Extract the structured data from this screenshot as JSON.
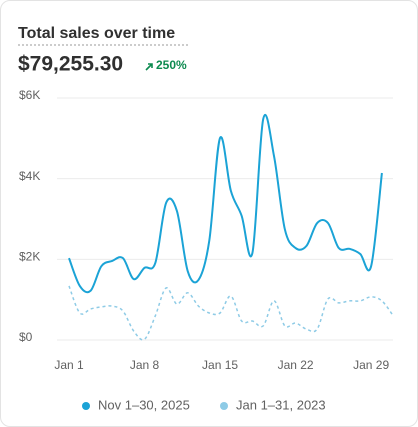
{
  "title": "Total sales over time",
  "total": "$79,255.30",
  "change": "250%",
  "chart_data": {
    "type": "line",
    "categories": [
      "Jan 1",
      null,
      null,
      null,
      null,
      null,
      null,
      "Jan 8",
      null,
      null,
      null,
      null,
      null,
      null,
      "Jan 15",
      null,
      null,
      null,
      null,
      null,
      null,
      "Jan 22",
      null,
      null,
      null,
      null,
      null,
      null,
      "Jan 29",
      null,
      null
    ],
    "series": [
      {
        "name": "Nov 1–30, 2025",
        "color": "#1ba3d6",
        "dashed": false,
        "values": [
          2030,
          1340,
          1220,
          1830,
          1960,
          2030,
          1510,
          1790,
          1910,
          3400,
          3200,
          1710,
          1490,
          2460,
          5010,
          3700,
          3080,
          2160,
          5480,
          4560,
          2750,
          2280,
          2330,
          2900,
          2900,
          2280,
          2260,
          2130,
          1830,
          4140,
          null
        ]
      },
      {
        "name": "Jan 1–31, 2023",
        "color": "#8ecbe6",
        "dashed": true,
        "values": [
          1340,
          670,
          770,
          820,
          840,
          720,
          220,
          20,
          600,
          1290,
          890,
          1170,
          840,
          670,
          670,
          1090,
          470,
          470,
          350,
          970,
          350,
          420,
          270,
          270,
          1020,
          920,
          970,
          970,
          1070,
          970,
          620
        ]
      }
    ],
    "ylim": [
      0,
      6000
    ],
    "yticks": [
      {
        "value": 0,
        "label": "$0"
      },
      {
        "value": 2000,
        "label": "$2K"
      },
      {
        "value": 4000,
        "label": "$4K"
      },
      {
        "value": 6000,
        "label": "$6K"
      }
    ],
    "grid": true
  }
}
